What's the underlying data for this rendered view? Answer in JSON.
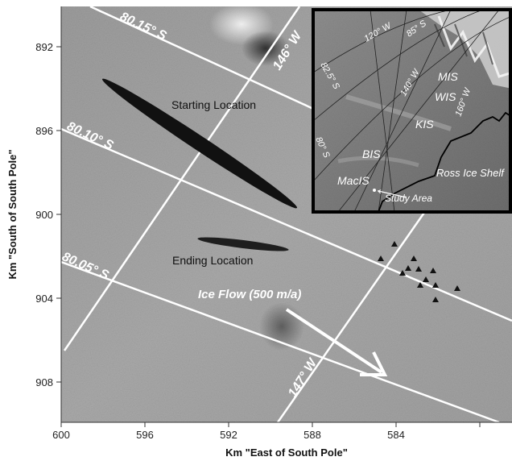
{
  "axes": {
    "ylabel": "Km \"South of South Pole\"",
    "xlabel": "Km \"East of South Pole\"",
    "yticks": [
      "892",
      "896",
      "900",
      "904",
      "908"
    ],
    "xticks": [
      "600",
      "596",
      "592",
      "588",
      "584"
    ]
  },
  "grid_labels": {
    "lat_80_15": "80.15° S",
    "lat_80_10": "80.10° S",
    "lat_80_05": "80.05° S",
    "lon_146": "146° W",
    "lon_147": "147° W"
  },
  "annotations": {
    "starting": "Starting Location",
    "ending": "Ending Location",
    "ice_flow": "Ice Flow (500 m/a)"
  },
  "inset": {
    "lon_120": "120° W",
    "lat_85": "85° S",
    "lat_82_5": "82.5° S",
    "lon_140": "140° W",
    "lon_160": "160° W",
    "lat_80": "80° S",
    "mis": "MIS",
    "wis": "WIS",
    "kis": "KIS",
    "bis": "BIS",
    "macis": "MacIS",
    "ross": "Ross Ice Shelf",
    "study_area": "Study Area"
  },
  "stations_count": 11,
  "colors": {
    "background": "#a4a4a4",
    "grid": "#ffffff",
    "inset_border": "#000000",
    "ellipse": "#111111"
  }
}
